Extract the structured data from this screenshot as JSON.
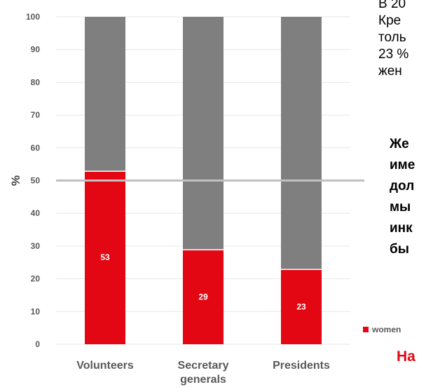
{
  "chart_data": {
    "type": "bar",
    "stacked": true,
    "categories": [
      "Volunteers",
      "Secretary generals",
      "Presidents"
    ],
    "category_lines": [
      [
        "Volunteers"
      ],
      [
        "Secretary",
        "generals"
      ],
      [
        "Presidents"
      ]
    ],
    "series": [
      {
        "name": "women",
        "values": [
          53,
          29,
          23
        ],
        "color": "#e30613",
        "data_labels": [
          "53",
          "29",
          "23"
        ]
      },
      {
        "values": [
          47,
          71,
          77
        ],
        "color": "#7f7f7f"
      }
    ],
    "ylabel": "%",
    "ylim": [
      0,
      100
    ],
    "yticks": [
      0,
      10,
      20,
      30,
      40,
      50,
      60,
      70,
      80,
      90,
      100
    ],
    "reference_line": 50,
    "reference_line_color": "#c0c0c0",
    "grid": true,
    "legend_position": "right"
  },
  "side_text": {
    "paragraph_lines": [
      "В 20",
      "Кре",
      "толь",
      "23 %",
      "жен"
    ],
    "bold_lines": [
      "Же",
      "име",
      "дол",
      "мы",
      "инк",
      "бы"
    ],
    "footer": "На"
  },
  "colors": {
    "accent": "#e30613",
    "footer_text": "#e30613",
    "bar_gray": "#7f7f7f"
  }
}
